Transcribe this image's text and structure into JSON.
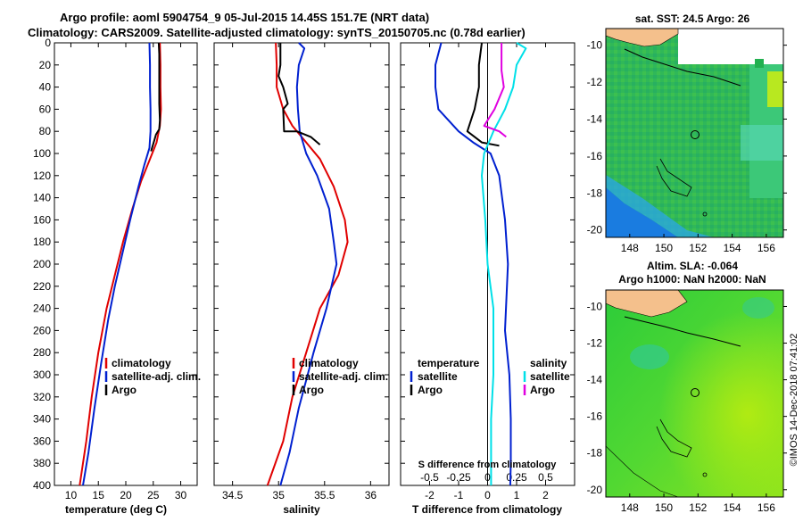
{
  "header": {
    "title_line1": "Argo profile: aoml 5904754_9 05-Jul-2015 14.45S 151.7E (NRT data)",
    "title_line2": "Climatology: CARS2009. Satellite-adjusted climatology: synTS_20150705.nc (0.78d earlier)"
  },
  "footer": {
    "credit": "©IMOS 14-Dec-2018 07:41:02"
  },
  "colors": {
    "climatology": "#e00000",
    "satellite": "#0020d0",
    "argo": "#000000",
    "sat_salinity": "#00e0e8",
    "argo_salinity": "#e000e0",
    "land": "#f4c08c"
  },
  "maps": {
    "sst": {
      "title": "sat. SST: 24.5 Argo: 26",
      "xticks": [
        "148",
        "150",
        "152",
        "154",
        "156"
      ],
      "yticks": [
        "-10",
        "-12",
        "-14",
        "-16",
        "-18",
        "-20"
      ]
    },
    "sla": {
      "title_line1": "Altim. SLA: -0.064",
      "title_line2": "Argo h1000: NaN h2000: NaN",
      "xticks": [
        "148",
        "150",
        "152",
        "154",
        "156"
      ],
      "yticks": [
        "-10",
        "-12",
        "-14",
        "-16",
        "-18",
        "-20"
      ]
    }
  },
  "chart_data": [
    {
      "type": "line",
      "name": "temperature",
      "xlabel": "temperature (deg C)",
      "ylabel": "depth",
      "xlim": [
        7,
        33
      ],
      "ylim": [
        400,
        0
      ],
      "xticks": [
        10,
        15,
        20,
        25,
        30
      ],
      "yticks": [
        0,
        20,
        40,
        60,
        80,
        100,
        120,
        140,
        160,
        180,
        200,
        220,
        240,
        260,
        280,
        300,
        320,
        340,
        360,
        380,
        400
      ],
      "legend": [
        "climatology",
        "satellite-adj. clim.",
        "Argo"
      ],
      "legend_position": "bottom-right",
      "series": [
        {
          "name": "climatology",
          "color": "#e00000",
          "values": [
            [
              26.2,
              0
            ],
            [
              26.3,
              20
            ],
            [
              26.3,
              40
            ],
            [
              26.4,
              60
            ],
            [
              26.2,
              75
            ],
            [
              25.6,
              90
            ],
            [
              24.4,
              105
            ],
            [
              22.8,
              125
            ],
            [
              21.2,
              150
            ],
            [
              19.5,
              180
            ],
            [
              18.0,
              210
            ],
            [
              16.5,
              240
            ],
            [
              15.0,
              280
            ],
            [
              13.8,
              320
            ],
            [
              12.8,
              360
            ],
            [
              11.6,
              400
            ]
          ]
        },
        {
          "name": "satellite-adj. clim.",
          "color": "#0020d0",
          "values": [
            [
              24.3,
              0
            ],
            [
              24.4,
              20
            ],
            [
              24.4,
              40
            ],
            [
              24.5,
              60
            ],
            [
              24.5,
              80
            ],
            [
              24.3,
              95
            ],
            [
              23.4,
              110
            ],
            [
              22.3,
              130
            ],
            [
              20.8,
              160
            ],
            [
              19.4,
              190
            ],
            [
              18.0,
              220
            ],
            [
              16.8,
              250
            ],
            [
              15.5,
              290
            ],
            [
              14.3,
              330
            ],
            [
              13.2,
              370
            ],
            [
              12.2,
              400
            ]
          ]
        },
        {
          "name": "Argo",
          "color": "#000000",
          "values": [
            [
              26.0,
              0
            ],
            [
              26.1,
              10
            ],
            [
              26.1,
              25
            ],
            [
              26.1,
              40
            ],
            [
              26.1,
              55
            ],
            [
              26.2,
              70
            ],
            [
              26.1,
              78
            ],
            [
              25.5,
              83
            ],
            [
              25.2,
              88
            ],
            [
              24.6,
              98
            ]
          ]
        }
      ]
    },
    {
      "type": "line",
      "name": "salinity",
      "xlabel": "salinity",
      "xlim": [
        34.3,
        36.2
      ],
      "ylim": [
        400,
        0
      ],
      "xticks": [
        34.5,
        35,
        35.5,
        36
      ],
      "legend": [
        "climatology",
        "satellite-adj. clim.",
        "Argo"
      ],
      "legend_position": "bottom-right",
      "series": [
        {
          "name": "climatology",
          "color": "#e00000",
          "values": [
            [
              34.97,
              0
            ],
            [
              34.98,
              20
            ],
            [
              34.98,
              40
            ],
            [
              35.05,
              60
            ],
            [
              35.15,
              75
            ],
            [
              35.25,
              85
            ],
            [
              35.45,
              105
            ],
            [
              35.6,
              130
            ],
            [
              35.72,
              160
            ],
            [
              35.75,
              180
            ],
            [
              35.65,
              210
            ],
            [
              35.45,
              240
            ],
            [
              35.3,
              280
            ],
            [
              35.15,
              320
            ],
            [
              35.05,
              360
            ],
            [
              34.88,
              400
            ]
          ]
        },
        {
          "name": "satellite-adj. clim.",
          "color": "#0020d0",
          "values": [
            [
              35.22,
              0
            ],
            [
              35.28,
              5
            ],
            [
              35.22,
              20
            ],
            [
              35.2,
              40
            ],
            [
              35.21,
              60
            ],
            [
              35.23,
              80
            ],
            [
              35.3,
              100
            ],
            [
              35.42,
              120
            ],
            [
              35.55,
              150
            ],
            [
              35.6,
              180
            ],
            [
              35.63,
              200
            ],
            [
              35.52,
              240
            ],
            [
              35.38,
              280
            ],
            [
              35.22,
              330
            ],
            [
              35.12,
              370
            ],
            [
              35.02,
              400
            ]
          ]
        },
        {
          "name": "Argo",
          "color": "#000000",
          "values": [
            [
              35.02,
              0
            ],
            [
              35.02,
              20
            ],
            [
              35.0,
              30
            ],
            [
              35.05,
              40
            ],
            [
              35.1,
              55
            ],
            [
              35.05,
              60
            ],
            [
              35.06,
              80
            ],
            [
              35.2,
              80
            ],
            [
              35.35,
              85
            ],
            [
              35.45,
              92
            ]
          ]
        }
      ]
    },
    {
      "type": "line",
      "name": "difference",
      "xlabel": "T difference from climatology",
      "x2label": "S difference from climatology",
      "xlim": [
        -3,
        3
      ],
      "x2lim": [
        -0.75,
        0.75
      ],
      "ylim": [
        400,
        0
      ],
      "xticks": [
        -2,
        -1,
        0,
        1,
        2
      ],
      "x2ticks": [
        -0.5,
        -0.25,
        0,
        0.25,
        0.5
      ],
      "legend_temperature_title": "temperature",
      "legend_salinity_title": "salinity",
      "legend_temperature": [
        "satellite",
        "Argo"
      ],
      "legend_salinity": [
        "satellite",
        "Argo"
      ],
      "legend_position": "bottom",
      "series": [
        {
          "name": "temperature satellite",
          "color": "#0020d0",
          "values": [
            [
              -1.6,
              0
            ],
            [
              -1.8,
              20
            ],
            [
              -1.8,
              40
            ],
            [
              -1.7,
              60
            ],
            [
              -1.0,
              80
            ],
            [
              -0.5,
              90
            ],
            [
              0.1,
              100
            ],
            [
              0.4,
              120
            ],
            [
              0.6,
              160
            ],
            [
              0.7,
              200
            ],
            [
              0.6,
              260
            ],
            [
              0.75,
              300
            ],
            [
              0.8,
              340
            ],
            [
              0.8,
              380
            ],
            [
              0.78,
              400
            ]
          ]
        },
        {
          "name": "temperature Argo",
          "color": "#000000",
          "values": [
            [
              -0.2,
              0
            ],
            [
              -0.3,
              20
            ],
            [
              -0.3,
              40
            ],
            [
              -0.45,
              60
            ],
            [
              -0.7,
              80
            ],
            [
              -0.2,
              90
            ],
            [
              0.4,
              93
            ]
          ]
        },
        {
          "name": "salinity satellite",
          "color": "#00e0e8",
          "values": [
            [
              0.25,
              0
            ],
            [
              0.33,
              5
            ],
            [
              0.25,
              20
            ],
            [
              0.22,
              40
            ],
            [
              0.15,
              60
            ],
            [
              0.05,
              80
            ],
            [
              -0.03,
              100
            ],
            [
              -0.05,
              120
            ],
            [
              -0.02,
              160
            ],
            [
              0.0,
              200
            ],
            [
              0.05,
              240
            ],
            [
              0.05,
              300
            ],
            [
              0.03,
              340
            ],
            [
              0.03,
              400
            ]
          ]
        },
        {
          "name": "salinity Argo",
          "color": "#e000e0",
          "values": [
            [
              0.12,
              0
            ],
            [
              0.12,
              25
            ],
            [
              0.14,
              40
            ],
            [
              0.06,
              60
            ],
            [
              -0.03,
              75
            ],
            [
              0.1,
              80
            ],
            [
              0.16,
              85
            ]
          ]
        }
      ]
    }
  ]
}
